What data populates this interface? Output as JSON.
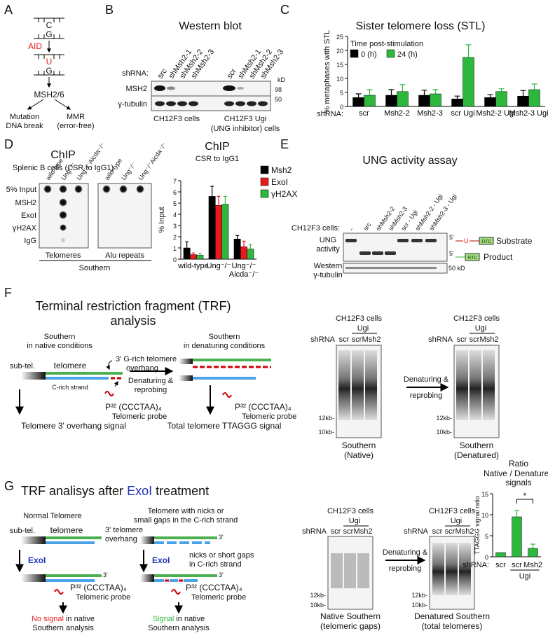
{
  "panel_labels": [
    "A",
    "B",
    "C",
    "D",
    "E",
    "F",
    "G"
  ],
  "panel_a": [
    "C",
    "G",
    "AID",
    "U",
    "G",
    "MSH2/6",
    "Mutation",
    "DNA break",
    "MMR",
    "(error-free)"
  ],
  "panel_b": {
    "title": "Western blot",
    "shrna_label": "shRNA:",
    "lanes": [
      "src",
      "shMsh2-1",
      "shMsh2-2",
      "shMsh2-3",
      "scr",
      "shMsh2-1",
      "shMsh2-2",
      "shMsh2-3"
    ],
    "rows": [
      "MSH2",
      "γ-tubulin"
    ],
    "kd": "kD",
    "markers": [
      98,
      50
    ],
    "groups": [
      "CH12F3 cells",
      "CH12F3 Ugi",
      "(UNG inhibitor) cells"
    ]
  },
  "panel_d": {
    "title": "ChIP",
    "subtitle": "Splenic B cells (CSR to IgG1)",
    "lanes": [
      "wild-type",
      "Ung⁻/⁻",
      "Ung⁻/⁻Aicda⁻/⁻"
    ],
    "rows": [
      "5% Input",
      "MSH2",
      "ExoI",
      "γH2AX",
      "IgG"
    ],
    "blots": [
      "Telomeres",
      "Alu repeats"
    ],
    "method": "Southern"
  },
  "panel_e": {
    "title": "UNG activity assay",
    "cells_label": "CH12F3 cells:",
    "lanes": [
      "-",
      "src",
      "shMsh2-2",
      "shMsh2-3",
      "scr - Ugi",
      "shMsh2-2 - Ugi",
      "shMsh2-3 - Ugi"
    ],
    "rows": [
      "UNG",
      "activity",
      "Western",
      "γ-tubulin"
    ],
    "marker": "50 kD",
    "five_prime": "5'",
    "u": "U",
    "fitc": "FITC",
    "substrate": "Substrate",
    "product": "Product"
  },
  "panel_f": {
    "title": "Terminal restriction fragment (TRF)",
    "title2": "analysis",
    "native": [
      "Southern",
      "in native conditions"
    ],
    "sub_tel": "sub-tel.",
    "telomere": "telomere",
    "c_rich": "C-rich strand",
    "overhang": [
      "3' G-rich telomere",
      "overhang"
    ],
    "arrow": [
      "Denaturing &",
      "reprobing"
    ],
    "denat": [
      "Southern",
      "in denaturing conditions"
    ],
    "probe": [
      "P³² (CCCTAA)₄",
      "Telomeric probe"
    ],
    "signals": [
      "Telomere 3' overhang signal",
      "Total telomere TTAGGG signal"
    ],
    "blot_cells": "CH12F3 cells",
    "blot_ugi": "Ugi",
    "shrna": "shRNA",
    "blot_lanes": [
      "scr",
      "scr",
      "Msh2"
    ],
    "markers": [
      "12kb-",
      "10kb-"
    ],
    "blot_labels": [
      "Southern",
      "(Native)",
      "(Denatured)"
    ]
  },
  "panel_g": {
    "title": [
      "TRF analisys after",
      "ExoI",
      "treatment"
    ],
    "normal": "Normal Telomere",
    "nicks": [
      "Telomere with nicks or",
      "small gaps in the C-rich strand"
    ],
    "sub_tel": "sub-tel.",
    "telomere": "telomere",
    "overhang": [
      "3' telomere",
      "overhang"
    ],
    "exo": "ExoI",
    "three": "3'",
    "gaps": [
      "nicks or short gaps",
      "in C-rich strand"
    ],
    "probe": [
      "P³² (CCCTAA)₄",
      "Telomeric probe"
    ],
    "no_signal": [
      "No signal",
      "in native",
      "Southern analysis"
    ],
    "signal": [
      "Signal",
      "in native",
      "Southern analysis"
    ],
    "blot_labels": [
      "Native Southern",
      "(telomeric gaps)",
      "Denatured Southern",
      "(total telomeres)"
    ]
  },
  "chart_data": [
    {
      "type": "bar",
      "title": "Sister telomere loss (STL)",
      "y_label": "% metaphases with STL",
      "x_label": "shRNA:",
      "legend_title": "Time post-stimulation",
      "categories": [
        "scr",
        "Msh2-2",
        "Msh2-3",
        "scr Ugi",
        "Msh2-2 Ugi",
        "Msh2-3 Ugi"
      ],
      "series": [
        {
          "name": "0 (h)",
          "color": "#000000",
          "values": [
            3.2,
            4,
            4,
            2.7,
            3.2,
            3.7
          ],
          "errors": [
            1.3,
            2,
            1.8,
            1,
            1,
            2
          ]
        },
        {
          "name": "24 (h)",
          "color": "#2db83d",
          "values": [
            4,
            5.3,
            4.5,
            17.5,
            5.3,
            6
          ],
          "errors": [
            2,
            2.5,
            1.5,
            4.5,
            1,
            2
          ]
        }
      ],
      "ylim": [
        0,
        25
      ],
      "yticks": [
        0,
        5,
        10,
        15,
        20,
        25
      ]
    },
    {
      "type": "bar",
      "title": "ChIP",
      "subtitle": "CSR to IgG1",
      "y_label": "% Input",
      "categories": [
        "wild-type",
        "Ung⁻/⁻",
        "Ung⁻/⁻ Aicda⁻/⁻"
      ],
      "series": [
        {
          "name": "Msh2",
          "color": "#000000",
          "values": [
            1,
            5.6,
            1.8
          ],
          "errors": [
            0.55,
            0.9,
            0.3
          ]
        },
        {
          "name": "ExoI",
          "color": "#e8191b",
          "values": [
            0.4,
            4.8,
            1.1
          ],
          "errors": [
            0.15,
            0.8,
            0.5
          ]
        },
        {
          "name": "γH2AX",
          "color": "#2db83d",
          "values": [
            0.35,
            4.9,
            0.9
          ],
          "errors": [
            0.15,
            0.7,
            0.4
          ]
        }
      ],
      "ylim": [
        0,
        7
      ],
      "yticks": [
        0,
        1,
        2,
        3,
        4,
        5,
        6,
        7
      ]
    },
    {
      "type": "bar",
      "title": "Ratio",
      "subtitle": [
        "Native / Denatured",
        "signals"
      ],
      "y_label": "TTAGGG signal ratio",
      "x_label": "shRNA:",
      "group_label": "Ugi",
      "annotation": "*",
      "categories": [
        "scr",
        "scr",
        "Msh2"
      ],
      "series": [
        {
          "color": "#2db83d",
          "values": [
            1,
            9.5,
            2
          ],
          "errors": [
            null,
            1.5,
            1
          ]
        }
      ],
      "ylim": [
        0,
        15
      ],
      "yticks": [
        0,
        5,
        10,
        15
      ]
    }
  ]
}
